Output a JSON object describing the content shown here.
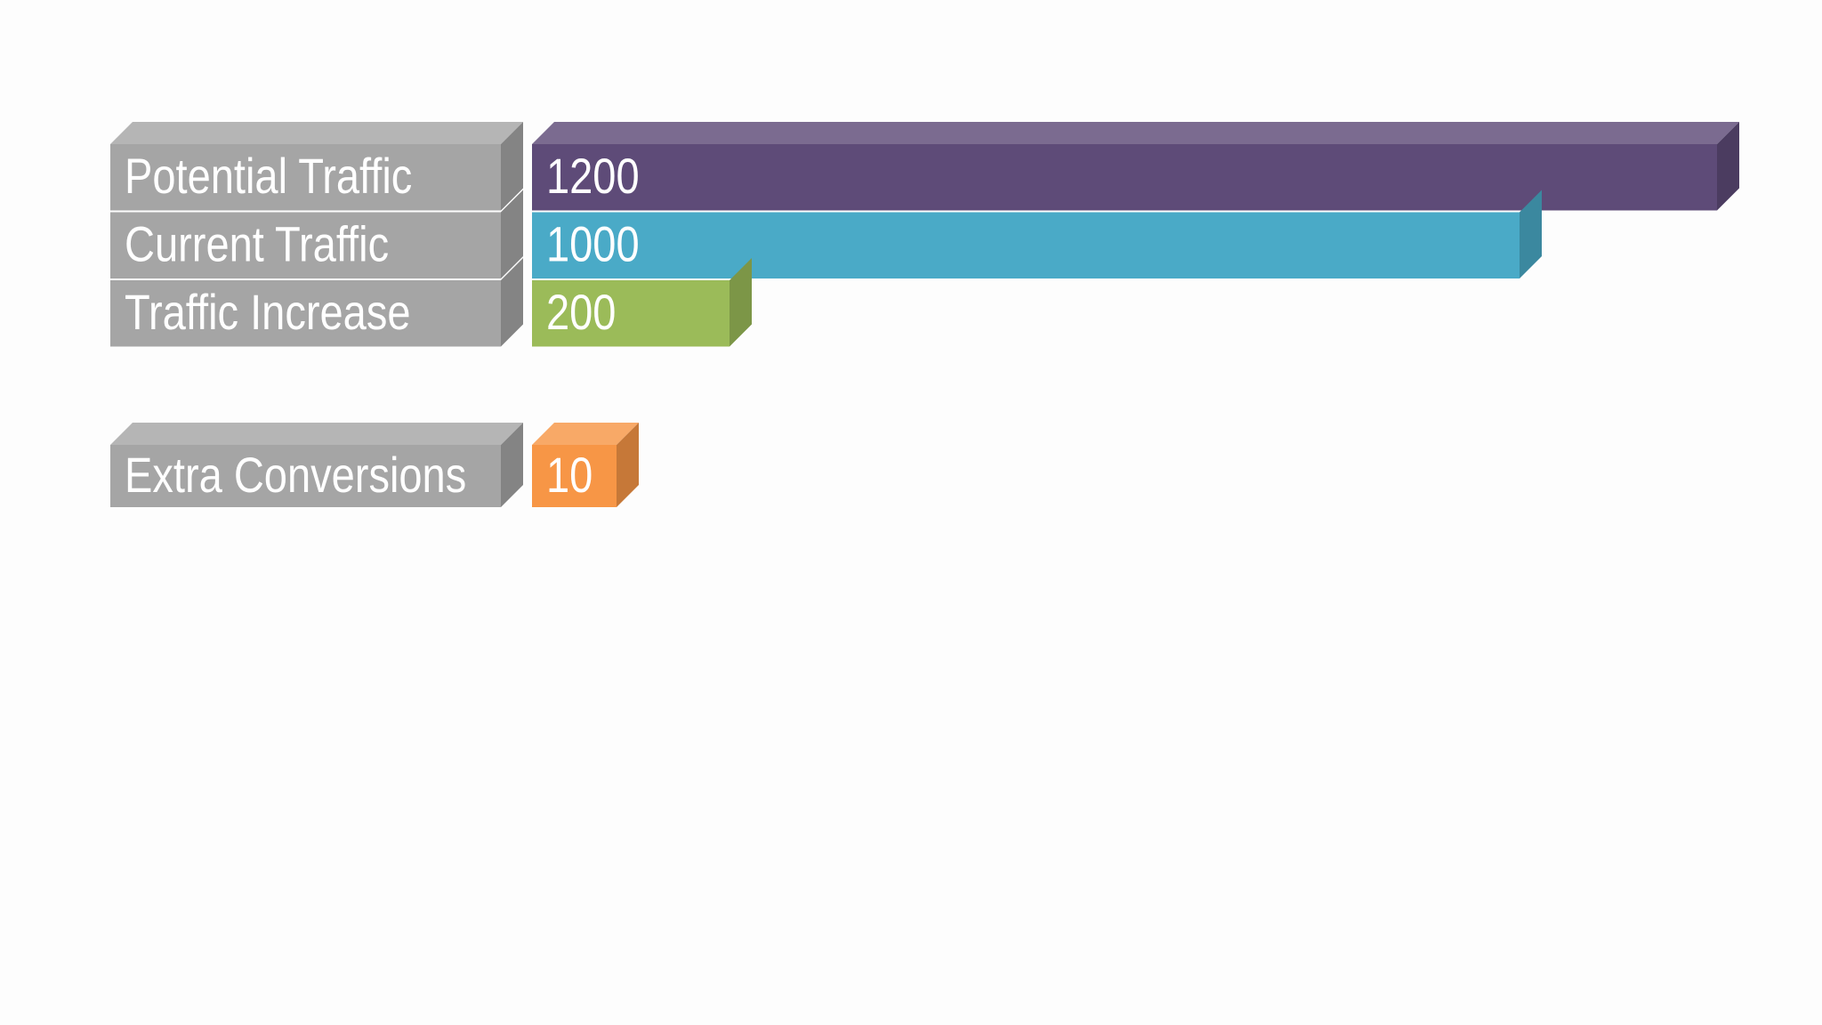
{
  "chart_data": [
    {
      "type": "bar",
      "categories": [
        "Potential Traffic",
        "Current Traffic",
        "Traffic Increase"
      ],
      "values": [
        1200,
        1000,
        200
      ],
      "colors": [
        "#5e4b78",
        "#4aaac7",
        "#9bbb59"
      ]
    },
    {
      "type": "bar",
      "categories": [
        "Extra Conversions"
      ],
      "values": [
        10
      ],
      "colors": [
        "#f79646"
      ]
    }
  ]
}
